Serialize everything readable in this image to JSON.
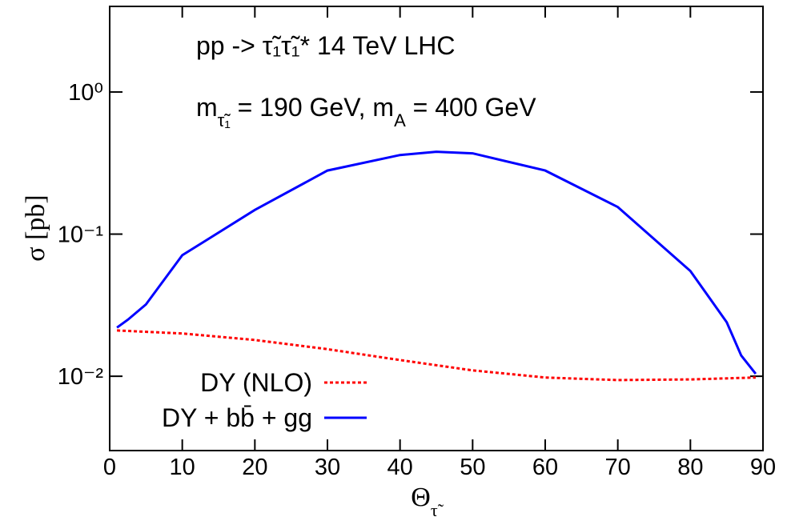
{
  "chart_data": {
    "type": "line",
    "annotations": [
      "pp -> τ̃₁τ̃₁*  14 TeV LHC"
    ],
    "annotation_parts": [
      "m",
      "τ̃₁",
      " = 190 GeV,  m",
      "A",
      " = 400 GeV"
    ],
    "xlabel_parts": [
      "Θ",
      "τ̃"
    ],
    "ylabel": "σ [pb]",
    "xlim": [
      0,
      90
    ],
    "xticks": [
      0,
      10,
      20,
      30,
      40,
      50,
      60,
      70,
      80,
      90
    ],
    "ylim": [
      0.003,
      4
    ],
    "log_y": true,
    "yticks": [
      {
        "value": 1,
        "label": "10⁰"
      },
      {
        "value": 0.1,
        "label": "10⁻¹"
      },
      {
        "value": 0.01,
        "label": "10⁻²"
      }
    ],
    "legend": "lower-left",
    "series": [
      {
        "name": "DY (NLO)",
        "color": "#ff0000",
        "dash": true,
        "x": [
          1,
          10,
          20,
          30,
          40,
          50,
          60,
          70,
          80,
          89
        ],
        "values": [
          0.021,
          0.02,
          0.018,
          0.0155,
          0.013,
          0.011,
          0.0098,
          0.0094,
          0.0095,
          0.0098
        ]
      },
      {
        "name": "DY + bb̄ + gg",
        "color": "#0000ff",
        "dash": false,
        "x": [
          1,
          2.5,
          5,
          10,
          20,
          30,
          40,
          45,
          50,
          60,
          70,
          80,
          85,
          87,
          89
        ],
        "values": [
          0.022,
          0.025,
          0.032,
          0.071,
          0.148,
          0.28,
          0.36,
          0.38,
          0.37,
          0.28,
          0.155,
          0.055,
          0.024,
          0.014,
          0.0104
        ]
      }
    ]
  }
}
